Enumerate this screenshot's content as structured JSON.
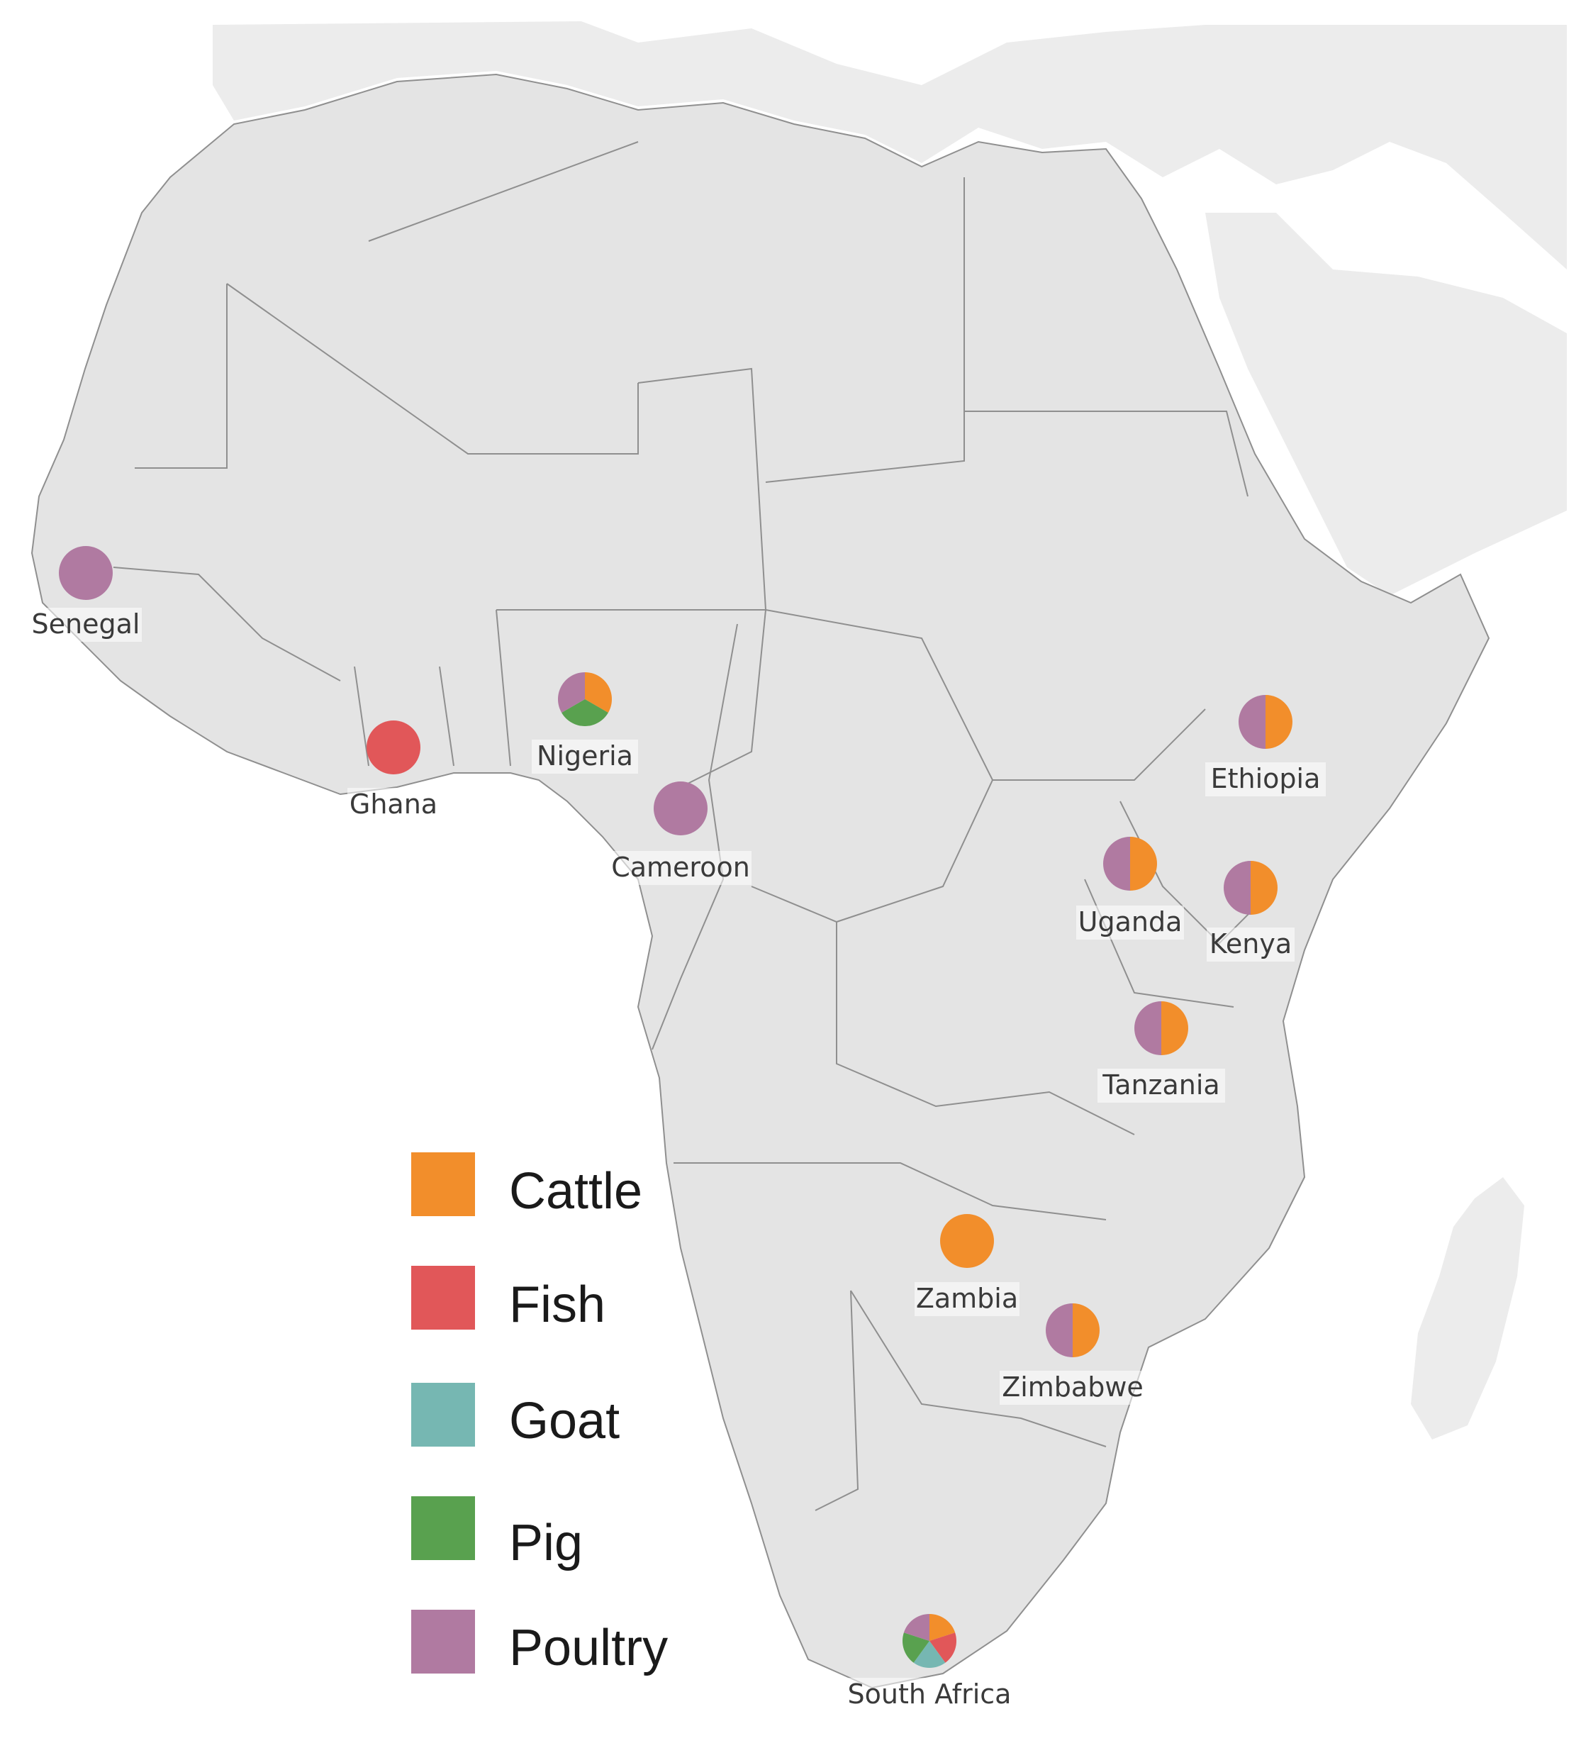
{
  "map": {
    "region": "Africa",
    "colors": {
      "land": "#e4e4e4",
      "border": "#8f8f8f",
      "ocean": "#ffffff",
      "europe": "#ececec"
    }
  },
  "legend": {
    "items": [
      {
        "key": "cattle",
        "label": "Cattle",
        "color": "#f28e2b"
      },
      {
        "key": "fish",
        "label": "Fish",
        "color": "#e15759"
      },
      {
        "key": "goat",
        "label": "Goat",
        "color": "#76b7b2"
      },
      {
        "key": "pig",
        "label": "Pig",
        "color": "#59a14f"
      },
      {
        "key": "poultry",
        "label": "Poultry",
        "color": "#b07aa1"
      }
    ]
  },
  "countries": [
    {
      "name": "Senegal",
      "slices": {
        "poultry": 1
      }
    },
    {
      "name": "Ghana",
      "slices": {
        "fish": 1
      }
    },
    {
      "name": "Nigeria",
      "slices": {
        "cattle": 1,
        "pig": 1,
        "poultry": 1
      }
    },
    {
      "name": "Cameroon",
      "slices": {
        "poultry": 1
      }
    },
    {
      "name": "Ethiopia",
      "slices": {
        "cattle": 1,
        "poultry": 1
      }
    },
    {
      "name": "Uganda",
      "slices": {
        "cattle": 1,
        "poultry": 1
      }
    },
    {
      "name": "Kenya",
      "slices": {
        "cattle": 1,
        "poultry": 1
      }
    },
    {
      "name": "Tanzania",
      "slices": {
        "cattle": 1,
        "poultry": 1
      }
    },
    {
      "name": "Zambia",
      "slices": {
        "cattle": 1
      }
    },
    {
      "name": "Zimbabwe",
      "slices": {
        "cattle": 1,
        "poultry": 1
      }
    },
    {
      "name": "South Africa",
      "slices": {
        "cattle": 1,
        "fish": 1,
        "goat": 1,
        "pig": 1,
        "poultry": 1
      }
    }
  ]
}
